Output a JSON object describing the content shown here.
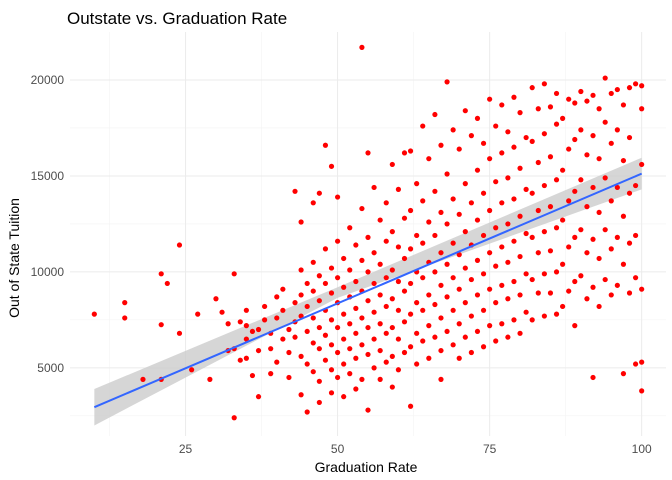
{
  "chart_data": {
    "type": "scatter",
    "title": "Outstate vs. Graduation Rate",
    "xlabel": "Graduation Rate",
    "ylabel": "Out of State Tuition",
    "xlim": [
      6,
      104
    ],
    "ylim": [
      1450,
      22500
    ],
    "x_ticks": [
      25,
      50,
      75,
      100
    ],
    "y_ticks": [
      5000,
      10000,
      15000,
      20000
    ],
    "x_tick_labels": [
      "25",
      "50",
      "75",
      "100"
    ],
    "y_tick_labels": [
      "5000",
      "10000",
      "15000",
      "20000"
    ],
    "grid": true,
    "legend": "none",
    "point_color": "#ff0000",
    "trend_color": "#3366ff",
    "band_color": "#cccccc",
    "trendline": {
      "x": [
        10,
        100
      ],
      "y": [
        2950,
        15120
      ]
    },
    "confidence_band": {
      "x": [
        10,
        50,
        100
      ],
      "lower": [
        2000,
        8650,
        14300
      ],
      "upper": [
        3900,
        9200,
        15950
      ]
    },
    "points": [
      [
        10,
        7800
      ],
      [
        15,
        8400
      ],
      [
        15,
        7600
      ],
      [
        18,
        4400
      ],
      [
        21,
        9900
      ],
      [
        21,
        7250
      ],
      [
        21,
        4400
      ],
      [
        22,
        9400
      ],
      [
        24,
        11400
      ],
      [
        24,
        6800
      ],
      [
        26,
        4900
      ],
      [
        27,
        7800
      ],
      [
        29,
        4400
      ],
      [
        30,
        8600
      ],
      [
        31,
        7900
      ],
      [
        32,
        5900
      ],
      [
        32,
        7300
      ],
      [
        33,
        9900
      ],
      [
        33,
        2400
      ],
      [
        33,
        6000
      ],
      [
        34,
        7400
      ],
      [
        34,
        5400
      ],
      [
        35,
        8000
      ],
      [
        35,
        7200
      ],
      [
        35,
        6500
      ],
      [
        35,
        5500
      ],
      [
        36,
        4600
      ],
      [
        36,
        6900
      ],
      [
        37,
        7000
      ],
      [
        37,
        5900
      ],
      [
        37,
        3500
      ],
      [
        38,
        8200
      ],
      [
        38,
        7500
      ],
      [
        39,
        6800
      ],
      [
        39,
        6000
      ],
      [
        39,
        4700
      ],
      [
        40,
        8700
      ],
      [
        40,
        7600
      ],
      [
        40,
        5300
      ],
      [
        41,
        9100
      ],
      [
        41,
        8000
      ],
      [
        41,
        6500
      ],
      [
        42,
        7000
      ],
      [
        42,
        5800
      ],
      [
        42,
        4500
      ],
      [
        43,
        14200
      ],
      [
        43,
        8400
      ],
      [
        43,
        7400
      ],
      [
        43,
        6600
      ],
      [
        44,
        12600
      ],
      [
        44,
        10100
      ],
      [
        44,
        8800
      ],
      [
        44,
        7700
      ],
      [
        44,
        5600
      ],
      [
        44,
        3600
      ],
      [
        45,
        9400
      ],
      [
        45,
        8200
      ],
      [
        45,
        6900
      ],
      [
        45,
        5200
      ],
      [
        45,
        2700
      ],
      [
        46,
        13600
      ],
      [
        46,
        10500
      ],
      [
        46,
        9000
      ],
      [
        46,
        7600
      ],
      [
        46,
        6300
      ],
      [
        46,
        4800
      ],
      [
        47,
        14100
      ],
      [
        47,
        9800
      ],
      [
        47,
        8500
      ],
      [
        47,
        7100
      ],
      [
        47,
        6000
      ],
      [
        47,
        4300
      ],
      [
        47,
        3200
      ],
      [
        48,
        16600
      ],
      [
        48,
        11200
      ],
      [
        48,
        9400
      ],
      [
        48,
        8000
      ],
      [
        48,
        6700
      ],
      [
        48,
        5400
      ],
      [
        49,
        15500
      ],
      [
        49,
        10200
      ],
      [
        49,
        8900
      ],
      [
        49,
        7500
      ],
      [
        49,
        6200
      ],
      [
        49,
        4900
      ],
      [
        49,
        3700
      ],
      [
        50,
        13900
      ],
      [
        50,
        11600
      ],
      [
        50,
        9700
      ],
      [
        50,
        8400
      ],
      [
        50,
        7100
      ],
      [
        50,
        5800
      ],
      [
        50,
        4500
      ],
      [
        51,
        10700
      ],
      [
        51,
        9200
      ],
      [
        51,
        7800
      ],
      [
        51,
        6500
      ],
      [
        51,
        5200
      ],
      [
        51,
        3500
      ],
      [
        52,
        12300
      ],
      [
        52,
        10100
      ],
      [
        52,
        8700
      ],
      [
        52,
        7300
      ],
      [
        52,
        6000
      ],
      [
        52,
        4700
      ],
      [
        53,
        11400
      ],
      [
        53,
        9500
      ],
      [
        53,
        8100
      ],
      [
        53,
        6800
      ],
      [
        53,
        5500
      ],
      [
        53,
        3900
      ],
      [
        54,
        21700
      ],
      [
        54,
        13300
      ],
      [
        54,
        10600
      ],
      [
        54,
        9000
      ],
      [
        54,
        7600
      ],
      [
        54,
        6200
      ],
      [
        54,
        4400
      ],
      [
        55,
        16200
      ],
      [
        55,
        11800
      ],
      [
        55,
        10000
      ],
      [
        55,
        8500
      ],
      [
        55,
        7100
      ],
      [
        55,
        5700
      ],
      [
        55,
        2800
      ],
      [
        56,
        14400
      ],
      [
        56,
        11000
      ],
      [
        56,
        9400
      ],
      [
        56,
        7900
      ],
      [
        56,
        6500
      ],
      [
        56,
        5000
      ],
      [
        57,
        12700
      ],
      [
        57,
        10400
      ],
      [
        57,
        8800
      ],
      [
        57,
        7300
      ],
      [
        57,
        5900
      ],
      [
        57,
        4400
      ],
      [
        58,
        13600
      ],
      [
        58,
        11600
      ],
      [
        58,
        9700
      ],
      [
        58,
        8200
      ],
      [
        58,
        6800
      ],
      [
        58,
        5300
      ],
      [
        59,
        15600
      ],
      [
        59,
        12100
      ],
      [
        59,
        10100
      ],
      [
        59,
        8600
      ],
      [
        59,
        7100
      ],
      [
        59,
        5600
      ],
      [
        59,
        4000
      ],
      [
        60,
        14300
      ],
      [
        60,
        11300
      ],
      [
        60,
        9500
      ],
      [
        60,
        8000
      ],
      [
        60,
        6500
      ],
      [
        60,
        4900
      ],
      [
        61,
        16200
      ],
      [
        61,
        12800
      ],
      [
        61,
        10700
      ],
      [
        61,
        9000
      ],
      [
        61,
        7400
      ],
      [
        61,
        5800
      ],
      [
        62,
        16300
      ],
      [
        62,
        13200
      ],
      [
        62,
        11200
      ],
      [
        62,
        9400
      ],
      [
        62,
        7800
      ],
      [
        62,
        6100
      ],
      [
        62,
        3000
      ],
      [
        63,
        14600
      ],
      [
        63,
        11900
      ],
      [
        63,
        10000
      ],
      [
        63,
        8400
      ],
      [
        63,
        6800
      ],
      [
        63,
        5200
      ],
      [
        64,
        17600
      ],
      [
        64,
        13700
      ],
      [
        64,
        11500
      ],
      [
        64,
        9700
      ],
      [
        64,
        8000
      ],
      [
        64,
        6400
      ],
      [
        65,
        15900
      ],
      [
        65,
        12600
      ],
      [
        65,
        10500
      ],
      [
        65,
        8800
      ],
      [
        65,
        7200
      ],
      [
        65,
        5500
      ],
      [
        66,
        18200
      ],
      [
        66,
        14200
      ],
      [
        66,
        11900
      ],
      [
        66,
        10000
      ],
      [
        66,
        8300
      ],
      [
        66,
        6600
      ],
      [
        67,
        16600
      ],
      [
        67,
        13100
      ],
      [
        67,
        11000
      ],
      [
        67,
        9300
      ],
      [
        67,
        7600
      ],
      [
        67,
        5900
      ],
      [
        67,
        4400
      ],
      [
        68,
        19900
      ],
      [
        68,
        15100
      ],
      [
        68,
        12500
      ],
      [
        68,
        10400
      ],
      [
        68,
        8700
      ],
      [
        68,
        6900
      ],
      [
        69,
        17400
      ],
      [
        69,
        13800
      ],
      [
        69,
        11500
      ],
      [
        69,
        9700
      ],
      [
        69,
        8000
      ],
      [
        69,
        6200
      ],
      [
        70,
        16400
      ],
      [
        70,
        13000
      ],
      [
        70,
        10900
      ],
      [
        70,
        9100
      ],
      [
        70,
        7300
      ],
      [
        70,
        5500
      ],
      [
        71,
        18400
      ],
      [
        71,
        14600
      ],
      [
        71,
        12100
      ],
      [
        71,
        10200
      ],
      [
        71,
        8400
      ],
      [
        71,
        6600
      ],
      [
        72,
        17100
      ],
      [
        72,
        13600
      ],
      [
        72,
        11400
      ],
      [
        72,
        9600
      ],
      [
        72,
        7700
      ],
      [
        72,
        5800
      ],
      [
        73,
        18000
      ],
      [
        73,
        15300
      ],
      [
        73,
        12700
      ],
      [
        73,
        10600
      ],
      [
        73,
        8800
      ],
      [
        73,
        6900
      ],
      [
        74,
        16700
      ],
      [
        74,
        14100
      ],
      [
        74,
        11900
      ],
      [
        74,
        9900
      ],
      [
        74,
        8000
      ],
      [
        74,
        6100
      ],
      [
        75,
        19000
      ],
      [
        75,
        15900
      ],
      [
        75,
        13200
      ],
      [
        75,
        11000
      ],
      [
        75,
        9100
      ],
      [
        75,
        7200
      ],
      [
        76,
        17600
      ],
      [
        76,
        14700
      ],
      [
        76,
        12300
      ],
      [
        76,
        10300
      ],
      [
        76,
        8400
      ],
      [
        76,
        6400
      ],
      [
        77,
        18700
      ],
      [
        77,
        16200
      ],
      [
        77,
        13600
      ],
      [
        77,
        11300
      ],
      [
        77,
        9300
      ],
      [
        77,
        7300
      ],
      [
        78,
        17300
      ],
      [
        78,
        14900
      ],
      [
        78,
        12500
      ],
      [
        78,
        10500
      ],
      [
        78,
        8600
      ],
      [
        78,
        6600
      ],
      [
        79,
        19100
      ],
      [
        79,
        16500
      ],
      [
        79,
        13800
      ],
      [
        79,
        11600
      ],
      [
        79,
        9500
      ],
      [
        79,
        7500
      ],
      [
        80,
        18300
      ],
      [
        80,
        15400
      ],
      [
        80,
        12900
      ],
      [
        80,
        10800
      ],
      [
        80,
        8800
      ],
      [
        80,
        6800
      ],
      [
        81,
        17000
      ],
      [
        81,
        14300
      ],
      [
        81,
        12000
      ],
      [
        81,
        9900
      ],
      [
        81,
        7900
      ],
      [
        82,
        19600
      ],
      [
        82,
        16800
      ],
      [
        82,
        14100
      ],
      [
        82,
        11800
      ],
      [
        82,
        9600
      ],
      [
        82,
        7500
      ],
      [
        83,
        18500
      ],
      [
        83,
        15700
      ],
      [
        83,
        13200
      ],
      [
        83,
        11000
      ],
      [
        83,
        8900
      ],
      [
        84,
        19800
      ],
      [
        84,
        17200
      ],
      [
        84,
        14500
      ],
      [
        84,
        12100
      ],
      [
        84,
        9900
      ],
      [
        84,
        7700
      ],
      [
        85,
        18600
      ],
      [
        85,
        16000
      ],
      [
        85,
        13400
      ],
      [
        85,
        11100
      ],
      [
        85,
        8900
      ],
      [
        86,
        19300
      ],
      [
        86,
        17700
      ],
      [
        86,
        14800
      ],
      [
        86,
        12300
      ],
      [
        86,
        10000
      ],
      [
        86,
        7800
      ],
      [
        87,
        18000
      ],
      [
        87,
        15300
      ],
      [
        87,
        12700
      ],
      [
        87,
        10400
      ],
      [
        87,
        8200
      ],
      [
        88,
        19000
      ],
      [
        88,
        16400
      ],
      [
        88,
        13700
      ],
      [
        88,
        11300
      ],
      [
        88,
        9000
      ],
      [
        89,
        18800
      ],
      [
        89,
        16900
      ],
      [
        89,
        14200
      ],
      [
        89,
        11800
      ],
      [
        89,
        9500
      ],
      [
        89,
        7200
      ],
      [
        90,
        19400
      ],
      [
        90,
        17400
      ],
      [
        90,
        14800
      ],
      [
        90,
        12200
      ],
      [
        90,
        9800
      ],
      [
        91,
        18900
      ],
      [
        91,
        16100
      ],
      [
        91,
        13400
      ],
      [
        91,
        11000
      ],
      [
        91,
        8600
      ],
      [
        92,
        19200
      ],
      [
        92,
        17100
      ],
      [
        92,
        14400
      ],
      [
        92,
        11700
      ],
      [
        92,
        9200
      ],
      [
        92,
        4500
      ],
      [
        93,
        18500
      ],
      [
        93,
        15900
      ],
      [
        93,
        13100
      ],
      [
        93,
        10700
      ],
      [
        93,
        8200
      ],
      [
        94,
        20100
      ],
      [
        94,
        17800
      ],
      [
        94,
        14900
      ],
      [
        94,
        12200
      ],
      [
        94,
        9600
      ],
      [
        95,
        19300
      ],
      [
        95,
        16700
      ],
      [
        95,
        13700
      ],
      [
        95,
        11200
      ],
      [
        95,
        8800
      ],
      [
        96,
        19500
      ],
      [
        96,
        17400
      ],
      [
        96,
        14400
      ],
      [
        96,
        11800
      ],
      [
        96,
        9300
      ],
      [
        97,
        18700
      ],
      [
        97,
        15800
      ],
      [
        97,
        12900
      ],
      [
        97,
        10400
      ],
      [
        97,
        4700
      ],
      [
        98,
        19600
      ],
      [
        98,
        17000
      ],
      [
        98,
        14100
      ],
      [
        98,
        11500
      ],
      [
        98,
        8900
      ],
      [
        99,
        19800
      ],
      [
        99,
        14500
      ],
      [
        99,
        11900
      ],
      [
        99,
        9700
      ],
      [
        99,
        5200
      ],
      [
        100,
        19700
      ],
      [
        100,
        18500
      ],
      [
        100,
        15600
      ],
      [
        100,
        9100
      ],
      [
        100,
        5300
      ],
      [
        100,
        3800
      ]
    ]
  }
}
